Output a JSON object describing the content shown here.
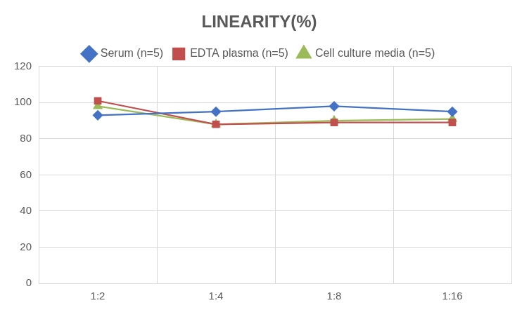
{
  "chart_data": {
    "type": "line",
    "title": "LINEARITY(%)",
    "categories": [
      "1:2",
      "1:4",
      "1:8",
      "1:16"
    ],
    "series": [
      {
        "name": "Serum (n=5)",
        "color": "#4472c4",
        "marker": "diamond",
        "values": [
          93,
          95,
          98,
          95
        ]
      },
      {
        "name": "EDTA plasma (n=5)",
        "color": "#c0504d",
        "marker": "square",
        "values": [
          101,
          88,
          89,
          89
        ]
      },
      {
        "name": "Cell culture media (n=5)",
        "color": "#9bbb59",
        "marker": "triangle",
        "values": [
          98,
          88,
          90,
          91
        ]
      }
    ],
    "ylim": [
      0,
      120
    ],
    "yticks": [
      0,
      20,
      40,
      60,
      80,
      100,
      120
    ],
    "grid": true,
    "legend": "top"
  }
}
